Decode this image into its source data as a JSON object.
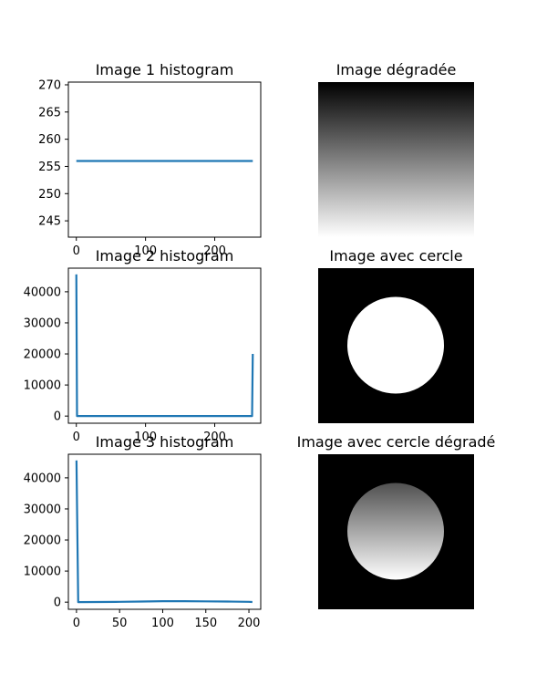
{
  "chart_data": [
    {
      "type": "line",
      "title": "Image 1 histogram",
      "xlabel": "",
      "ylabel": "",
      "xlim": [
        -11.5,
        266.5
      ],
      "ylim": [
        242,
        270.5
      ],
      "xticks": [
        0,
        100,
        200
      ],
      "yticks": [
        245,
        250,
        255,
        260,
        265,
        270
      ],
      "color": "#1f77b4",
      "series": [
        {
          "x": [
            0,
            255
          ],
          "y": [
            256,
            256
          ]
        }
      ]
    },
    {
      "type": "line",
      "title": "Image 2 histogram",
      "xlabel": "",
      "ylabel": "",
      "xlim": [
        -11.5,
        266.5
      ],
      "ylim": [
        -2300,
        47600
      ],
      "xticks": [
        0,
        100,
        200
      ],
      "yticks": [
        0,
        10000,
        20000,
        30000,
        40000
      ],
      "color": "#1f77b4",
      "series": [
        {
          "x": [
            0,
            1,
            50,
            100,
            150,
            200,
            253,
            254,
            255
          ],
          "y": [
            45600,
            0,
            0,
            0,
            0,
            0,
            0,
            0,
            20000
          ]
        }
      ]
    },
    {
      "type": "line",
      "title": "Image 3 histogram",
      "xlabel": "",
      "ylabel": "",
      "xlim": [
        -9.4,
        213.7
      ],
      "ylim": [
        -2300,
        47600
      ],
      "xticks": [
        0,
        50,
        100,
        150,
        200
      ],
      "yticks": [
        0,
        10000,
        20000,
        30000,
        40000
      ],
      "color": "#1f77b4",
      "series": [
        {
          "x": [
            0,
            2,
            25,
            50,
            75,
            100,
            125,
            150,
            175,
            200,
            204
          ],
          "y": [
            45600,
            0,
            50,
            100,
            200,
            300,
            300,
            250,
            200,
            100,
            50
          ]
        }
      ]
    }
  ],
  "images": [
    {
      "title": "Image dégradée",
      "kind": "gradient"
    },
    {
      "title": "Image avec cercle",
      "kind": "circle"
    },
    {
      "title": "Image avec cercle dégradé",
      "kind": "circle-gradient"
    }
  ]
}
